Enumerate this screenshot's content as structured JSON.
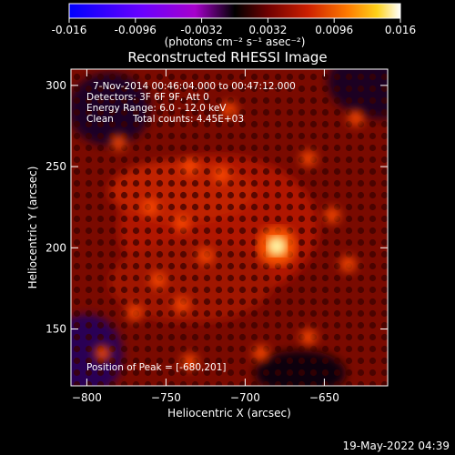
{
  "colorbar": {
    "ticks": [
      "-0.016",
      "-0.0096",
      "-0.0032",
      "0.0032",
      "0.0096",
      "0.016"
    ],
    "min": -0.016,
    "max": 0.016,
    "units_label": "(photons cm⁻² s⁻¹ asec⁻²)",
    "colormap": [
      "#0000ff",
      "#6a00ff",
      "#a600cc",
      "#000000",
      "#6f0000",
      "#cc1f00",
      "#ff7a00",
      "#ffd21a",
      "#ffffff"
    ]
  },
  "chart_data": {
    "type": "heatmap",
    "title": "Reconstructed RHESSI Image",
    "xlabel": "Heliocentric X (arcsec)",
    "ylabel": "Heliocentric Y (arcsec)",
    "xlim": [
      -810,
      -610
    ],
    "ylim": [
      115,
      310
    ],
    "x_ticks": [
      -800,
      -750,
      -700,
      -650
    ],
    "y_ticks": [
      150,
      200,
      250,
      300
    ],
    "x_tick_labels": [
      "−800",
      "−750",
      "−700",
      "−650"
    ],
    "y_tick_labels": [
      "150",
      "200",
      "250",
      "300"
    ],
    "peak": [
      -680,
      201
    ],
    "secondary_sources": [
      [
        -780,
        265
      ],
      [
        -735,
        250
      ],
      [
        -715,
        245
      ],
      [
        -760,
        225
      ],
      [
        -740,
        215
      ],
      [
        -725,
        195
      ],
      [
        -755,
        180
      ],
      [
        -770,
        160
      ],
      [
        -740,
        165
      ],
      [
        -690,
        135
      ],
      [
        -660,
        145
      ],
      [
        -635,
        190
      ],
      [
        -645,
        220
      ],
      [
        -660,
        255
      ],
      [
        -630,
        280
      ],
      [
        -790,
        135
      ],
      [
        -735,
        130
      ],
      [
        -710,
        285
      ]
    ],
    "annotations": {
      "time_range": "7-Nov-2014 00:46:04.000 to 00:47:12.000",
      "detectors": "Detectors: 3F 6F 9F, Att 0",
      "energy": "Energy Range: 6.0 - 12.0 keV",
      "clean": "Clean",
      "counts": "Total counts: 4.45E+03",
      "peak_text": "Position of Peak = [-680,201]"
    }
  },
  "footer": {
    "date": "19-May-2022 04:39"
  }
}
